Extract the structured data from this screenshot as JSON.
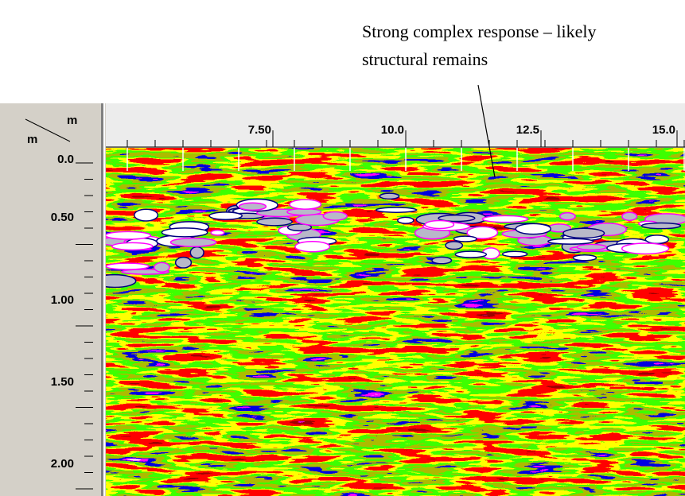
{
  "annotation": {
    "lines": [
      "Strong complex response – likely",
      "structural remains"
    ]
  },
  "axes": {
    "corner": {
      "top": "m",
      "left": "m"
    },
    "x_labels": [
      "7.50",
      "10.0",
      "12.5",
      "15.0"
    ],
    "y_labels": [
      "0.0",
      "0.50",
      "1.00",
      "1.50",
      "2.00"
    ]
  }
}
